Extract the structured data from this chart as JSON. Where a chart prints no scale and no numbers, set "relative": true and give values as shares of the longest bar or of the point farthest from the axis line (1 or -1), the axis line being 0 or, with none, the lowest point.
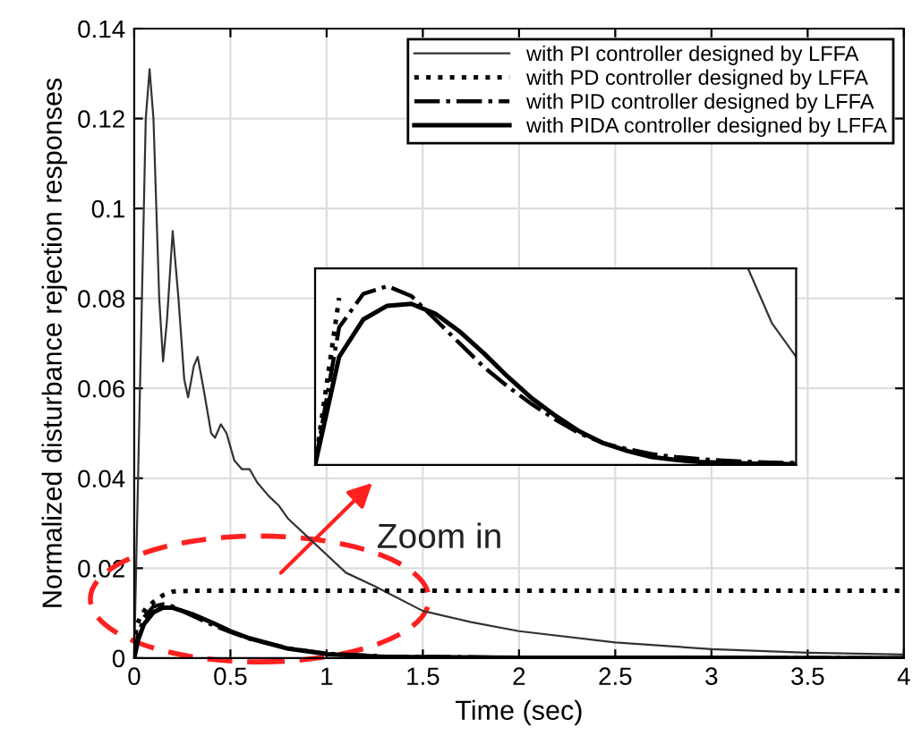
{
  "chart_data": [
    {
      "type": "line",
      "xlabel": "Time (sec)",
      "ylabel": "Normalized disturbance rejection responses",
      "xlim": [
        0,
        4
      ],
      "ylim": [
        0,
        0.14
      ],
      "xticks": [
        0,
        0.5,
        1,
        1.5,
        2,
        2.5,
        3,
        3.5,
        4
      ],
      "yticks": [
        0,
        0.02,
        0.04,
        0.06,
        0.08,
        0.1,
        0.12,
        0.14
      ],
      "grid": true,
      "legend": "top right",
      "annotations": [
        "Zoom in"
      ],
      "series": [
        {
          "name": "with PI controller designed by LFFA",
          "color": "#333333",
          "line_style": "solid",
          "x": [
            0,
            0.03,
            0.06,
            0.08,
            0.1,
            0.13,
            0.15,
            0.17,
            0.2,
            0.23,
            0.26,
            0.28,
            0.31,
            0.33,
            0.36,
            0.4,
            0.42,
            0.45,
            0.48,
            0.52,
            0.56,
            0.6,
            0.64,
            0.7,
            0.75,
            0.8,
            0.9,
            1.0,
            1.1,
            1.25,
            1.5,
            1.75,
            2,
            2.5,
            3,
            3.5,
            4
          ],
          "values": [
            0,
            0.06,
            0.12,
            0.131,
            0.12,
            0.08,
            0.066,
            0.075,
            0.095,
            0.08,
            0.062,
            0.058,
            0.065,
            0.067,
            0.06,
            0.05,
            0.049,
            0.052,
            0.05,
            0.044,
            0.042,
            0.042,
            0.039,
            0.036,
            0.034,
            0.031,
            0.027,
            0.023,
            0.019,
            0.016,
            0.0105,
            0.008,
            0.006,
            0.0035,
            0.002,
            0.0012,
            0.0008
          ]
        },
        {
          "name": "with PD controller designed by LFFA",
          "color": "#000000",
          "line_style": "dotted",
          "x": [
            0,
            0.01,
            0.03,
            0.06,
            0.1,
            0.15,
            0.2,
            0.3,
            4
          ],
          "values": [
            0,
            0.007,
            0.009,
            0.011,
            0.0125,
            0.014,
            0.0148,
            0.015,
            0.015
          ]
        },
        {
          "name": "with PID controller designed by LFFA",
          "color": "#000000",
          "line_style": "dashdot",
          "x": [
            0,
            0.02,
            0.05,
            0.1,
            0.15,
            0.2,
            0.3,
            0.4,
            0.5,
            0.6,
            0.8,
            1.0,
            1.3,
            2,
            4
          ],
          "values": [
            0,
            0.005,
            0.009,
            0.0115,
            0.012,
            0.0115,
            0.0095,
            0.0075,
            0.0058,
            0.0043,
            0.0022,
            0.001,
            0.0004,
            0.0001,
            0
          ]
        },
        {
          "name": "with PIDA controller designed by LFFA",
          "color": "#000000",
          "line_style": "solid",
          "x": [
            0,
            0.02,
            0.05,
            0.1,
            0.15,
            0.2,
            0.3,
            0.4,
            0.5,
            0.6,
            0.8,
            1.0,
            1.3,
            2,
            4
          ],
          "values": [
            0,
            0.004,
            0.0075,
            0.0102,
            0.0112,
            0.0112,
            0.0098,
            0.008,
            0.006,
            0.0044,
            0.0021,
            0.0009,
            0.0003,
            0.0001,
            0
          ]
        }
      ]
    },
    {
      "type": "line",
      "relative": true,
      "categories": [
        null,
        null,
        null,
        null,
        null,
        null,
        null,
        null,
        null,
        null,
        null,
        null,
        null,
        null,
        null,
        null,
        null,
        null,
        null,
        null,
        null
      ],
      "series": [
        {
          "color": "#333333",
          "line_style": "solid",
          "values": [
            null,
            null,
            null,
            null,
            null,
            null,
            null,
            null,
            null,
            null,
            null,
            null,
            null,
            null,
            null,
            null,
            null,
            null,
            1.0,
            0.72,
            0.55
          ]
        },
        {
          "color": "#000000",
          "line_style": "dotted",
          "values": [
            0,
            0.85,
            null,
            null,
            null,
            null,
            null,
            null,
            null,
            null,
            null,
            null,
            null,
            null,
            null,
            null,
            null,
            null,
            null,
            null,
            null
          ]
        },
        {
          "color": "#000000",
          "line_style": "dashdot",
          "values": [
            0,
            0.7,
            0.87,
            0.91,
            0.86,
            0.74,
            0.62,
            0.5,
            0.4,
            0.31,
            0.23,
            0.16,
            0.11,
            0.08,
            0.055,
            0.04,
            0.03,
            0.022,
            0.016,
            0.012,
            0.01
          ]
        },
        {
          "color": "#000000",
          "line_style": "solid",
          "values": [
            0,
            0.55,
            0.74,
            0.81,
            0.82,
            0.77,
            0.68,
            0.57,
            0.45,
            0.34,
            0.25,
            0.17,
            0.11,
            0.07,
            0.04,
            0.025,
            0.015,
            0.01,
            0.007,
            0.005,
            0.004
          ]
        }
      ]
    }
  ]
}
